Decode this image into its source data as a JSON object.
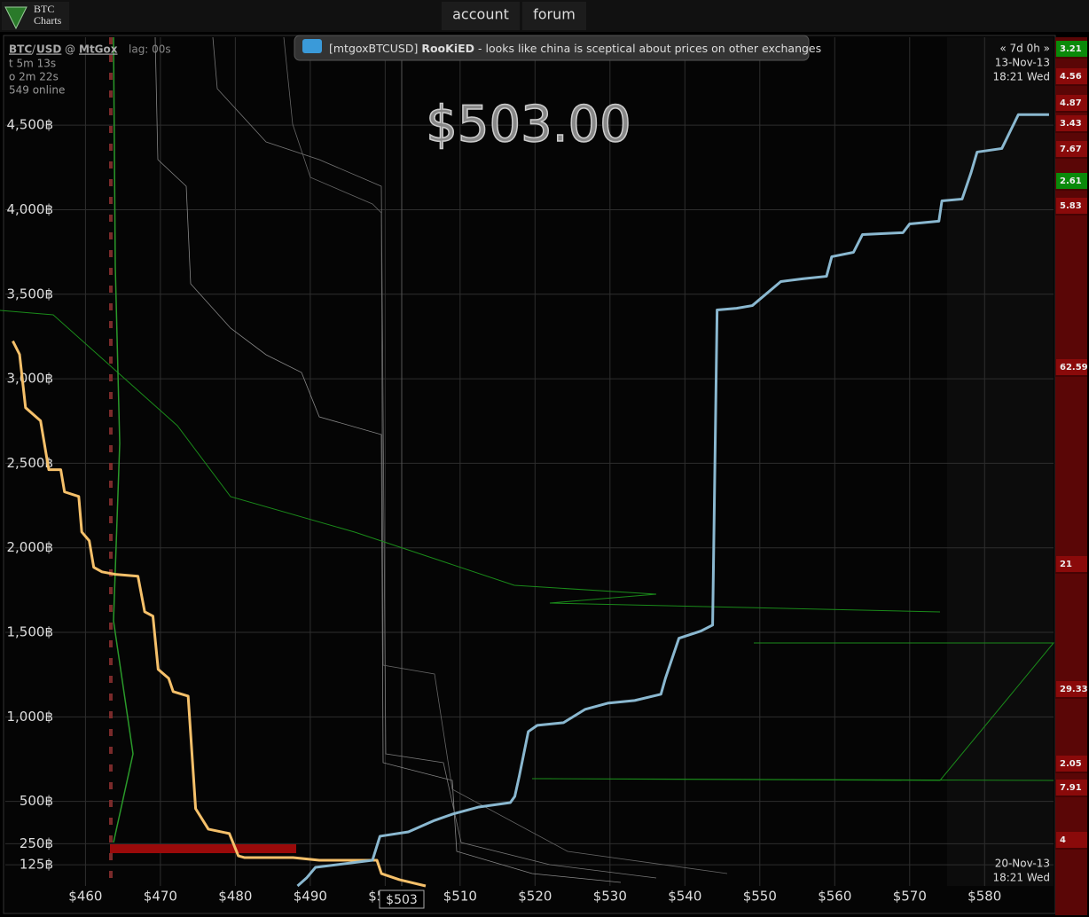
{
  "header": {
    "logo": [
      "BTC",
      "Charts"
    ],
    "nav": [
      "account",
      "forum"
    ]
  },
  "info": {
    "base": "BTC",
    "sep": "/",
    "quote": "USD",
    "at": "@",
    "exchange": "MtGox",
    "lag": "lag: 00s",
    "lines": [
      "t 5m 13s",
      "o 2m 22s",
      "549 online"
    ]
  },
  "chat": {
    "channel": "[mtgoxBTCUSD]",
    "user": "RooKiED",
    "message": "- looks like china is sceptical about prices on other exchanges"
  },
  "range": {
    "span": "« 7d 0h »",
    "start_date": "13-Nov-13",
    "start_time": "18:21 Wed",
    "end_date": "20-Nov-13",
    "end_time": "18:21 Wed"
  },
  "price": "$503.00",
  "cursor_label": "$503",
  "sidebar": [
    {
      "value": 3.21,
      "color": "#0a8a0a"
    },
    {
      "value": 4.56,
      "color": "#8a0a0a"
    },
    {
      "value": 4.87,
      "color": "#8a0a0a"
    },
    {
      "value": 3.43,
      "color": "#8a0a0a"
    },
    {
      "value": 7.67,
      "color": "#8a0a0a"
    },
    {
      "value": 2.61,
      "color": "#0a8a0a"
    },
    {
      "value": 5.83,
      "color": "#8a0a0a"
    },
    {
      "value": 62.59,
      "color": "#8a0a0a"
    },
    {
      "value": 21,
      "color": "#8a0a0a"
    },
    {
      "value": 29.33,
      "color": "#8a0a0a"
    },
    {
      "value": 2.05,
      "color": "#8a0a0a"
    },
    {
      "value": 7.91,
      "color": "#8a0a0a"
    },
    {
      "value": 4,
      "color": "#8a0a0a"
    }
  ],
  "chart_data": {
    "type": "line",
    "xlim": [
      449.3,
      589.2
    ],
    "ylim": [
      0,
      5020
    ],
    "grid": true,
    "xticks": [
      {
        "value": 460,
        "label": "$460"
      },
      {
        "value": 470,
        "label": "$470"
      },
      {
        "value": 480,
        "label": "$480"
      },
      {
        "value": 490,
        "label": "$490"
      },
      {
        "value": 500,
        "label": "$500"
      },
      {
        "value": 510,
        "label": "$510"
      },
      {
        "value": 520,
        "label": "$520"
      },
      {
        "value": 530,
        "label": "$530"
      },
      {
        "value": 540,
        "label": "$540"
      },
      {
        "value": 550,
        "label": "$550"
      },
      {
        "value": 560,
        "label": "$560"
      },
      {
        "value": 570,
        "label": "$570"
      },
      {
        "value": 580,
        "label": "$580"
      }
    ],
    "yticks": [
      {
        "value": 125,
        "label": "125฿"
      },
      {
        "value": 250,
        "label": "250฿"
      },
      {
        "value": 500,
        "label": "500฿"
      },
      {
        "value": 1000,
        "label": "1,000฿"
      },
      {
        "value": 1500,
        "label": "1,500฿"
      },
      {
        "value": 2000,
        "label": "2,000฿"
      },
      {
        "value": 2500,
        "label": "2,500฿"
      },
      {
        "value": 3000,
        "label": "3,000฿"
      },
      {
        "value": 3500,
        "label": "3,500฿"
      },
      {
        "value": 4000,
        "label": "4,000฿"
      },
      {
        "value": 4500,
        "label": "4,500฿"
      }
    ],
    "series": [
      {
        "color": "#f5c06a",
        "x": [
          450.3,
          451.2,
          452.0,
          454.0,
          455.1,
          456.7,
          457.2,
          459.1,
          459.5,
          460.5,
          461.1,
          462.2,
          464.0,
          467.0,
          467.9,
          469.0,
          469.7,
          471.1,
          471.7,
          473.7,
          474.7,
          476.4,
          479.2,
          480.4,
          481.2,
          487.7,
          491.2,
          498.9,
          499.5,
          501.9,
          505.4
        ],
        "values": [
          3223,
          3144,
          2829,
          2751,
          2462,
          2462,
          2331,
          2304,
          2094,
          2042,
          1885,
          1858,
          1843,
          1832,
          1622,
          1596,
          1281,
          1228,
          1150,
          1123,
          457,
          336,
          310,
          178,
          168,
          168,
          152,
          152,
          73,
          37,
          0
        ]
      },
      {
        "color": "#8ab8d0",
        "x": [
          488.3,
          489.5,
          490.7,
          498.3,
          499.3,
          503.1,
          506.6,
          509.0,
          512.5,
          516.7,
          517.3,
          517.9,
          519.1,
          520.3,
          523.8,
          526.7,
          529.7,
          533.3,
          536.8,
          537.4,
          539.2,
          542.1,
          543.7,
          544.3,
          546.9,
          549.0,
          552.8,
          555.7,
          558.9,
          559.6,
          562.5,
          563.7,
          569.1,
          570.0,
          573.9,
          574.3,
          577.0,
          578.2,
          579.0,
          582.3,
          584.5,
          588.6
        ],
        "values": [
          0,
          47,
          110,
          152,
          294,
          320,
          388,
          425,
          467,
          493,
          530,
          651,
          913,
          950,
          966,
          1045,
          1081,
          1097,
          1134,
          1228,
          1465,
          1507,
          1543,
          3407,
          3417,
          3433,
          3575,
          3591,
          3606,
          3722,
          3748,
          3853,
          3864,
          3916,
          3932,
          4052,
          4063,
          4220,
          4341,
          4362,
          4562,
          4562
        ]
      }
    ]
  }
}
